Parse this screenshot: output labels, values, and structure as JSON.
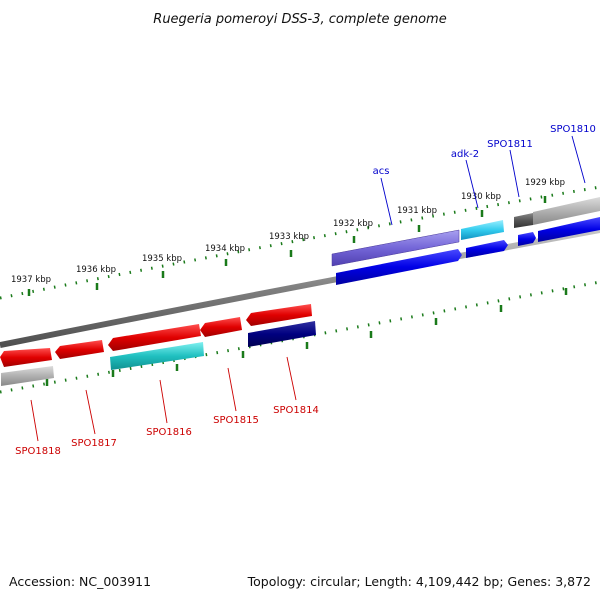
{
  "title": "Ruegeria pomeroyi DSS-3, complete genome",
  "footer": {
    "accession": "Accession: NC_003911",
    "topology": "Topology: circular; Length: 4,109,442 bp; Genes: 3,872"
  },
  "kbp_labels": [
    "1937 kbp",
    "1936 kbp",
    "1935 kbp",
    "1934 kbp",
    "1933 kbp",
    "1932 kbp",
    "1931 kbp",
    "1930 kbp",
    "1929 kbp"
  ],
  "gene_labels_top": [
    "acs",
    "adk-2",
    "SPO1811",
    "SPO1810"
  ],
  "gene_labels_bottom": [
    "SPO1818",
    "SPO1817",
    "SPO1816",
    "SPO1815",
    "SPO1814"
  ],
  "colors": {
    "backbone": "#808080",
    "tick": "#1a7a1a",
    "red_gene": "#e00000",
    "blue_gene": "#0000e6",
    "purple_gene": "#6a5acd",
    "cyan_gene": "#33ccee",
    "teal_gene": "#20c0c0",
    "navy_gene": "#000080",
    "gray_gene": "#a8a8a8",
    "dark_gray_gene": "#555555"
  }
}
